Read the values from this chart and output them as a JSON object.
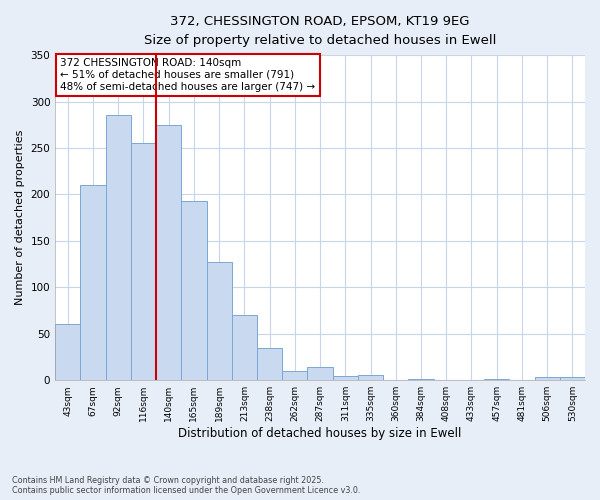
{
  "title": "372, CHESSINGTON ROAD, EPSOM, KT19 9EG",
  "subtitle": "Size of property relative to detached houses in Ewell",
  "xlabel": "Distribution of detached houses by size in Ewell",
  "ylabel": "Number of detached properties",
  "bin_labels": [
    "43sqm",
    "67sqm",
    "92sqm",
    "116sqm",
    "140sqm",
    "165sqm",
    "189sqm",
    "213sqm",
    "238sqm",
    "262sqm",
    "287sqm",
    "311sqm",
    "335sqm",
    "360sqm",
    "384sqm",
    "408sqm",
    "433sqm",
    "457sqm",
    "481sqm",
    "506sqm",
    "530sqm"
  ],
  "bar_heights": [
    60,
    210,
    285,
    255,
    275,
    193,
    127,
    70,
    35,
    10,
    14,
    5,
    6,
    0,
    1,
    0,
    0,
    1,
    0,
    3,
    3
  ],
  "bar_color": "#c9d9f0",
  "bar_edge_color": "#7ba7d4",
  "vline_x_index": 4,
  "vline_color": "#cc0000",
  "annotation_title": "372 CHESSINGTON ROAD: 140sqm",
  "annotation_line1": "← 51% of detached houses are smaller (791)",
  "annotation_line2": "48% of semi-detached houses are larger (747) →",
  "annotation_box_color": "#cc0000",
  "ylim": [
    0,
    350
  ],
  "yticks": [
    0,
    50,
    100,
    150,
    200,
    250,
    300,
    350
  ],
  "footnote1": "Contains HM Land Registry data © Crown copyright and database right 2025.",
  "footnote2": "Contains public sector information licensed under the Open Government Licence v3.0.",
  "bg_color": "#e8eef8",
  "plot_bg_color": "#ffffff",
  "grid_color": "#c8d4e8"
}
